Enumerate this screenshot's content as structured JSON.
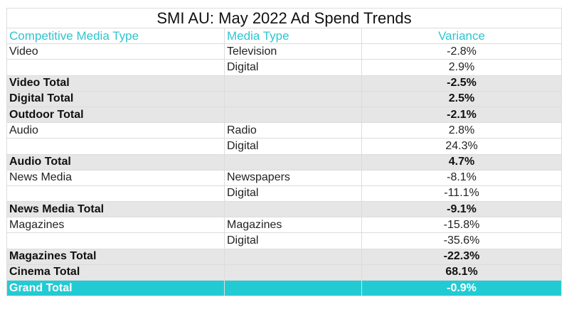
{
  "title": "SMI AU: May 2022 Ad Spend Trends",
  "headers": [
    "Competitive Media Type",
    "Media Type",
    "Variance"
  ],
  "rows": [
    {
      "type": "data",
      "c1": "Video",
      "c2": "Television",
      "v": "-2.8%"
    },
    {
      "type": "data",
      "c1": "",
      "c2": "Digital",
      "v": "2.9%"
    },
    {
      "type": "total",
      "c1": "Video Total",
      "c2": "",
      "v": "-2.5%"
    },
    {
      "type": "total",
      "c1": "Digital Total",
      "c2": "",
      "v": "2.5%"
    },
    {
      "type": "total",
      "c1": "Outdoor Total",
      "c2": "",
      "v": "-2.1%"
    },
    {
      "type": "data",
      "c1": "Audio",
      "c2": "Radio",
      "v": "2.8%"
    },
    {
      "type": "data",
      "c1": "",
      "c2": "Digital",
      "v": "24.3%"
    },
    {
      "type": "total",
      "c1": "Audio Total",
      "c2": "",
      "v": "4.7%"
    },
    {
      "type": "data",
      "c1": "News Media",
      "c2": "Newspapers",
      "v": "-8.1%"
    },
    {
      "type": "data",
      "c1": "",
      "c2": "Digital",
      "v": "-11.1%"
    },
    {
      "type": "total",
      "c1": "News Media Total",
      "c2": "",
      "v": "-9.1%"
    },
    {
      "type": "data",
      "c1": "Magazines",
      "c2": "Magazines",
      "v": "-15.8%"
    },
    {
      "type": "data",
      "c1": "",
      "c2": "Digital",
      "v": "-35.6%"
    },
    {
      "type": "total",
      "c1": "Magazines Total",
      "c2": "",
      "v": "-22.3%"
    },
    {
      "type": "total",
      "c1": "Cinema Total",
      "c2": "",
      "v": "68.1%"
    },
    {
      "type": "grand",
      "c1": "Grand Total",
      "c2": "",
      "v": "-0.9%"
    }
  ],
  "colors": {
    "accent": "#22cbd4",
    "header_text": "#2ec5d0",
    "total_bg": "#e6e6e6"
  }
}
